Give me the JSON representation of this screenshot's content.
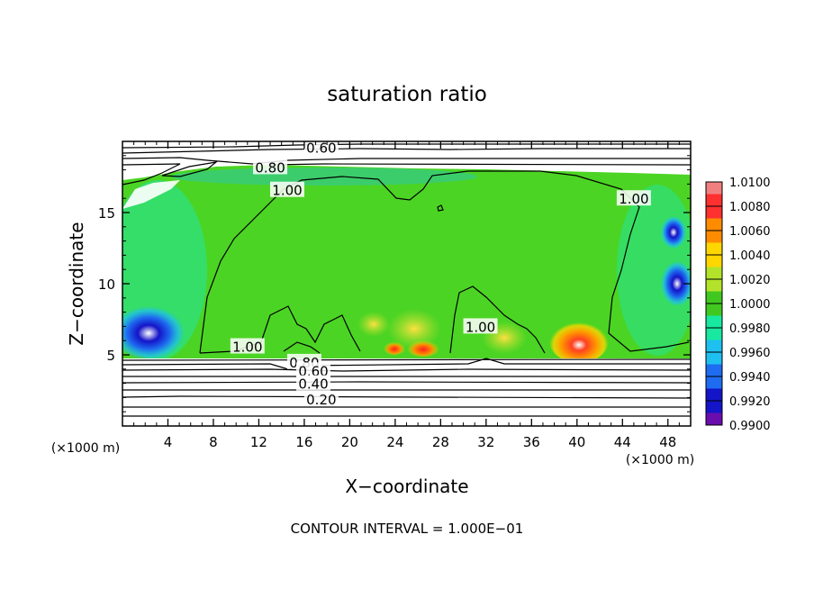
{
  "chart_data": {
    "type": "heatmap",
    "title": "saturation ratio",
    "xlabel": "X−coordinate",
    "ylabel": "Z−coordinate",
    "x_unit_left": "(×1000 m)",
    "x_unit_right": "(×1000 m)",
    "xlim": [
      0,
      50
    ],
    "ylim": [
      0,
      20
    ],
    "xticks": [
      4,
      8,
      12,
      16,
      20,
      24,
      28,
      32,
      36,
      40,
      44,
      48
    ],
    "yticks": [
      5,
      10,
      15
    ],
    "footer": "CONTOUR INTERVAL = 1.000E−01",
    "colorbar": {
      "min": 0.99,
      "max": 1.01,
      "labels": [
        "1.0100",
        "1.0080",
        "1.0060",
        "1.0040",
        "1.0020",
        "1.0000",
        "0.9980",
        "0.9960",
        "0.9940",
        "0.9920",
        "0.9900"
      ],
      "colors": [
        "#f08080",
        "#ff3030",
        "#ff8c00",
        "#ffd700",
        "#b2e32a",
        "#40c820",
        "#18e8a0",
        "#1ec0f0",
        "#1e6cf0",
        "#1414c8",
        "#6a0dad"
      ]
    },
    "contour_labels": [
      {
        "text": "0.60",
        "x": 17.5,
        "z": 19.6
      },
      {
        "text": "0.80",
        "x": 13.0,
        "z": 18.2
      },
      {
        "text": "1.00",
        "x": 14.5,
        "z": 16.6
      },
      {
        "text": "1.00",
        "x": 45.0,
        "z": 16.0
      },
      {
        "text": "1.00",
        "x": 11.0,
        "z": 5.6
      },
      {
        "text": "1.00",
        "x": 31.5,
        "z": 7.0
      },
      {
        "text": "0.80",
        "x": 16.0,
        "z": 4.5
      },
      {
        "text": "0.60",
        "x": 16.8,
        "z": 3.9
      },
      {
        "text": "0.40",
        "x": 16.8,
        "z": 3.0
      },
      {
        "text": "0.20",
        "x": 17.5,
        "z": 1.9
      }
    ],
    "hotspots": [
      {
        "x": 40.5,
        "z": 6.0,
        "value": 1.008,
        "rx": 3.5,
        "rz": 2.0
      },
      {
        "x": 27.0,
        "z": 5.6,
        "value": 1.006,
        "rx": 1.5,
        "rz": 0.8
      },
      {
        "x": 23.5,
        "z": 5.6,
        "value": 1.006,
        "rx": 1.0,
        "rz": 0.6
      },
      {
        "x": 2.5,
        "z": 6.2,
        "value": 0.994,
        "rx": 2.5,
        "rz": 1.8
      },
      {
        "x": 48.5,
        "z": 10.0,
        "value": 0.995,
        "rx": 1.2,
        "rz": 1.5
      }
    ]
  }
}
